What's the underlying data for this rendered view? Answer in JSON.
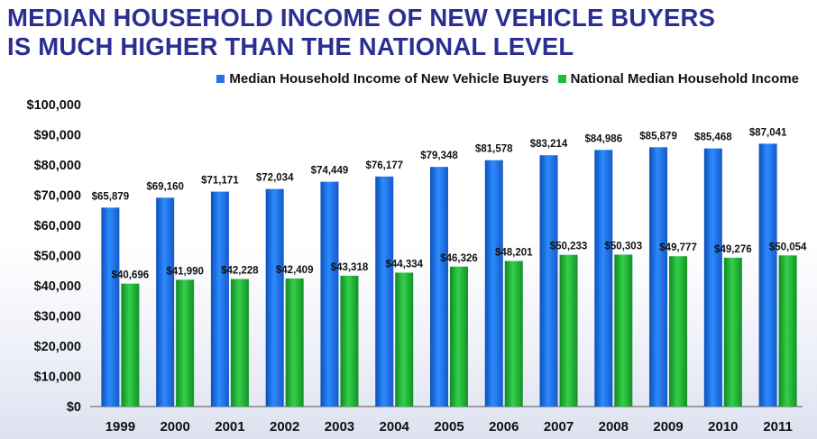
{
  "title_line1": "MEDIAN HOUSEHOLD INCOME OF NEW VEHICLE BUYERS",
  "title_line2": "IS MUCH HIGHER THAN THE NATIONAL LEVEL",
  "colors": {
    "title": "#2b2f92",
    "series_blue": "#1f74e8",
    "series_green": "#22b83a"
  },
  "chart_data": {
    "type": "bar",
    "title": "MEDIAN HOUSEHOLD INCOME OF NEW VEHICLE BUYERS IS MUCH HIGHER THAN THE NATIONAL LEVEL",
    "xlabel": "",
    "ylabel": "",
    "ylim": [
      0,
      100000
    ],
    "y_ticks": [
      0,
      10000,
      20000,
      30000,
      40000,
      50000,
      60000,
      70000,
      80000,
      90000,
      100000
    ],
    "y_tick_labels": [
      "$0",
      "$10,000",
      "$20,000",
      "$30,000",
      "$40,000",
      "$50,000",
      "$60,000",
      "$70,000",
      "$80,000",
      "$90,000",
      "$100,000"
    ],
    "grid": false,
    "legend_position": "top-right",
    "categories": [
      "1999",
      "2000",
      "2001",
      "2002",
      "2003",
      "2004",
      "2005",
      "2006",
      "2007",
      "2008",
      "2009",
      "2010",
      "2011"
    ],
    "series": [
      {
        "name": "Median Household Income of New Vehicle Buyers",
        "color": "#1f74e8",
        "values": [
          65879,
          69160,
          71171,
          72034,
          74449,
          76177,
          79348,
          81578,
          83214,
          84986,
          85879,
          85468,
          87041
        ],
        "labels": [
          "$65,879",
          "$69,160",
          "$71,171",
          "$72,034",
          "$74,449",
          "$76,177",
          "$79,348",
          "$81,578",
          "$83,214",
          "$84,986",
          "$85,879",
          "$85,468",
          "$87,041"
        ]
      },
      {
        "name": "National Median Household Income",
        "color": "#22b83a",
        "values": [
          40696,
          41990,
          42228,
          42409,
          43318,
          44334,
          46326,
          48201,
          50233,
          50303,
          49777,
          49276,
          50054
        ],
        "labels": [
          "$40,696",
          "$41,990",
          "$42,228",
          "$42,409",
          "$43,318",
          "$44,334",
          "$46,326",
          "$48,201",
          "$50,233",
          "$50,303",
          "$49,777",
          "$49,276",
          "$50,054"
        ]
      }
    ]
  }
}
